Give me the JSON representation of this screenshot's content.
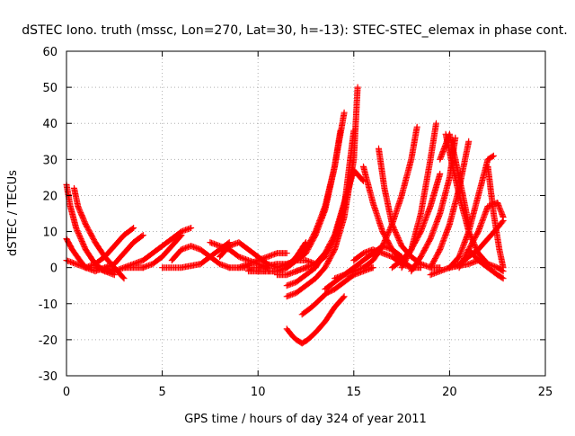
{
  "chart_data": {
    "type": "scatter",
    "title": "dSTEC Iono. truth (mssc, Lon=270, Lat=30, h=-13): STEC-STEC_elemax in phase cont.",
    "xlabel": "GPS time / hours of day 324 of year 2011",
    "ylabel": "dSTEC  / TECUs",
    "xlim": [
      0,
      25
    ],
    "ylim": [
      -30,
      60
    ],
    "xticks": [
      0,
      5,
      10,
      15,
      20,
      25
    ],
    "yticks": [
      -30,
      -20,
      -10,
      0,
      10,
      20,
      30,
      40,
      50,
      60
    ],
    "grid": true,
    "marker": "+",
    "color": "#ff0000",
    "series": [
      {
        "x": [
          0.0,
          0.2,
          0.5,
          1.0,
          1.5,
          2.0,
          2.5
        ],
        "y": [
          23,
          17,
          11,
          5,
          1,
          -1,
          -2
        ]
      },
      {
        "x": [
          0.4,
          0.6,
          1.0,
          1.5,
          2.0,
          2.5,
          3.0
        ],
        "y": [
          22,
          17,
          12,
          7,
          3,
          0,
          -3
        ]
      },
      {
        "x": [
          0.0,
          0.3,
          0.7,
          1.0,
          1.5,
          2.0,
          2.5
        ],
        "y": [
          8,
          5,
          2,
          0,
          -1,
          0,
          -1
        ]
      },
      {
        "x": [
          0.0,
          0.5,
          1.0,
          1.5,
          2.0,
          2.5,
          3.0,
          3.5,
          4.0
        ],
        "y": [
          2,
          1,
          0,
          0,
          -1,
          -1,
          0,
          0,
          0
        ]
      },
      {
        "x": [
          1.0,
          1.5,
          2.0,
          2.5,
          3.0,
          3.5
        ],
        "y": [
          0,
          1,
          3,
          6,
          9,
          11
        ]
      },
      {
        "x": [
          2.0,
          2.5,
          3.0,
          3.5,
          4.0
        ],
        "y": [
          0,
          1,
          4,
          7,
          9
        ]
      },
      {
        "x": [
          3.0,
          4.0,
          4.5,
          5.0,
          5.5,
          6.0,
          6.5
        ],
        "y": [
          0,
          2,
          4,
          6,
          8,
          10,
          11
        ]
      },
      {
        "x": [
          4.0,
          4.5,
          5.0,
          5.5,
          6.0
        ],
        "y": [
          0,
          1,
          3,
          6,
          9
        ]
      },
      {
        "x": [
          5.5,
          6.0,
          6.5,
          7.0,
          7.5,
          8.0,
          8.5
        ],
        "y": [
          2,
          5,
          6,
          5,
          3,
          1,
          0
        ]
      },
      {
        "x": [
          5.0,
          6.0,
          7.0,
          7.5,
          8.0,
          8.5
        ],
        "y": [
          0,
          0,
          1,
          3,
          5,
          7
        ]
      },
      {
        "x": [
          7.5,
          8.0,
          8.5,
          9.0,
          9.5,
          10.0,
          10.5
        ],
        "y": [
          7,
          6,
          5,
          3,
          2,
          1,
          0
        ]
      },
      {
        "x": [
          8.0,
          8.5,
          9.0,
          9.5,
          10.0,
          10.5,
          11.0
        ],
        "y": [
          3,
          6,
          7,
          5,
          3,
          1,
          0
        ]
      },
      {
        "x": [
          8.5,
          9.0,
          9.5,
          10.0,
          10.5,
          11.0,
          11.5
        ],
        "y": [
          0,
          0,
          1,
          2,
          3,
          4,
          4
        ]
      },
      {
        "x": [
          9.0,
          10.0,
          11.0,
          11.5,
          12.0,
          12.5,
          13.0
        ],
        "y": [
          0,
          0,
          1,
          1,
          2,
          2,
          1
        ]
      },
      {
        "x": [
          9.5,
          10.0,
          11.0,
          11.5,
          12.0,
          12.5
        ],
        "y": [
          -1,
          -1,
          -1,
          0,
          3,
          7
        ]
      },
      {
        "x": [
          10.0,
          11.0,
          11.5,
          12.0,
          12.5
        ],
        "y": [
          -1,
          -1,
          0,
          2,
          5
        ]
      },
      {
        "x": [
          11.0,
          11.5,
          12.0,
          12.5
        ],
        "y": [
          -2,
          -2,
          -1,
          0
        ]
      },
      {
        "x": [
          11.5,
          12.0,
          12.5,
          13.0,
          13.5
        ],
        "y": [
          -5,
          -4,
          -2,
          0,
          4
        ]
      },
      {
        "x": [
          11.5,
          12.0,
          12.5,
          13.0,
          13.5,
          14.0,
          14.3
        ],
        "y": [
          0,
          2,
          5,
          10,
          17,
          28,
          38
        ]
      },
      {
        "x": [
          11.0,
          12.0,
          12.5,
          13.0,
          13.5,
          14.0,
          14.5
        ],
        "y": [
          0,
          2,
          4,
          9,
          16,
          28,
          43
        ]
      },
      {
        "x": [
          11.5,
          12.0,
          12.5,
          13.0,
          13.5,
          14.0,
          14.5,
          15.0,
          15.2
        ],
        "y": [
          -8,
          -7,
          -5,
          -3,
          0,
          5,
          14,
          30,
          50
        ]
      },
      {
        "x": [
          12.0,
          12.5,
          13.0,
          13.5,
          14.0,
          14.5,
          15.0
        ],
        "y": [
          -1,
          0,
          1,
          3,
          8,
          17,
          38
        ]
      },
      {
        "x": [
          12.5,
          13.0,
          13.5,
          14.0,
          14.5,
          15.0,
          15.5
        ],
        "y": [
          0,
          1,
          4,
          9,
          18,
          27,
          24
        ]
      },
      {
        "x": [
          11.5,
          11.8,
          12.0,
          12.3,
          12.6,
          13.0,
          13.5,
          14.0,
          14.5
        ],
        "y": [
          -17,
          -19,
          -20,
          -21,
          -20,
          -18,
          -15,
          -11,
          -8
        ]
      },
      {
        "x": [
          12.3,
          12.8,
          13.2,
          13.6,
          14.0,
          14.5,
          15.0,
          15.5,
          16.0
        ],
        "y": [
          -13,
          -11,
          -9,
          -7,
          -6,
          -4,
          -2,
          -1,
          0
        ]
      },
      {
        "x": [
          13.5,
          14.0,
          14.5,
          15.0,
          15.5,
          16.0
        ],
        "y": [
          -6,
          -4,
          -2,
          -1,
          0,
          0
        ]
      },
      {
        "x": [
          14.0,
          14.5,
          15.0,
          15.5,
          16.0,
          16.5,
          17.0,
          17.5
        ],
        "y": [
          -3,
          -2,
          0,
          2,
          4,
          6,
          5,
          3
        ]
      },
      {
        "x": [
          15.0,
          15.5,
          16.0,
          16.5,
          17.0,
          17.5,
          18.0
        ],
        "y": [
          2,
          4,
          5,
          4,
          3,
          1,
          0
        ]
      },
      {
        "x": [
          15.5,
          16.0,
          16.5,
          17.0,
          17.5,
          18.0,
          18.5
        ],
        "y": [
          28,
          18,
          10,
          5,
          2,
          0,
          0
        ]
      },
      {
        "x": [
          16.3,
          16.6,
          17.0,
          17.5,
          18.0,
          18.5,
          19.0,
          19.5
        ],
        "y": [
          33,
          22,
          12,
          6,
          3,
          1,
          0,
          0
        ]
      },
      {
        "x": [
          15.5,
          16.0,
          16.5,
          17.0,
          17.5,
          18.0,
          18.3
        ],
        "y": [
          0,
          2,
          6,
          12,
          20,
          30,
          39
        ]
      },
      {
        "x": [
          17.0,
          17.5,
          18.0,
          18.5,
          19.0,
          19.5
        ],
        "y": [
          0,
          2,
          5,
          10,
          17,
          26
        ]
      },
      {
        "x": [
          17.5,
          18.0,
          18.5,
          19.0,
          19.3
        ],
        "y": [
          0,
          5,
          15,
          30,
          40
        ]
      },
      {
        "x": [
          18.0,
          18.5,
          19.0,
          19.5,
          20.0,
          20.3
        ],
        "y": [
          -1,
          3,
          8,
          15,
          25,
          36
        ]
      },
      {
        "x": [
          19.5,
          20.0,
          20.3,
          20.7,
          21.0
        ],
        "y": [
          30,
          37,
          30,
          20,
          12
        ]
      },
      {
        "x": [
          19.8,
          20.2,
          20.6,
          21.0,
          21.5,
          22.0
        ],
        "y": [
          37,
          27,
          18,
          10,
          4,
          1
        ]
      },
      {
        "x": [
          19.0,
          19.5,
          20.0,
          20.5,
          21.0
        ],
        "y": [
          0,
          5,
          12,
          22,
          35
        ]
      },
      {
        "x": [
          20.0,
          20.5,
          21.0,
          21.5,
          22.0,
          22.3
        ],
        "y": [
          0,
          3,
          10,
          20,
          30,
          31
        ]
      },
      {
        "x": [
          20.5,
          21.0,
          21.5,
          22.0,
          22.5,
          22.8
        ],
        "y": [
          0,
          5,
          10,
          17,
          18,
          14
        ]
      },
      {
        "x": [
          20.0,
          20.5,
          21.0,
          21.5,
          22.0,
          22.5,
          22.8
        ],
        "y": [
          0,
          1,
          3,
          5,
          8,
          11,
          13
        ]
      },
      {
        "x": [
          19.0,
          20.0,
          21.0,
          21.5,
          22.0,
          22.5,
          22.8
        ],
        "y": [
          -2,
          0,
          1,
          2,
          1,
          0,
          -1
        ]
      },
      {
        "x": [
          21.0,
          21.5,
          22.0,
          22.5,
          22.8
        ],
        "y": [
          5,
          2,
          0,
          -2,
          -3
        ]
      },
      {
        "x": [
          22.0,
          22.3,
          22.6,
          22.8
        ],
        "y": [
          28,
          15,
          5,
          0
        ]
      }
    ]
  }
}
